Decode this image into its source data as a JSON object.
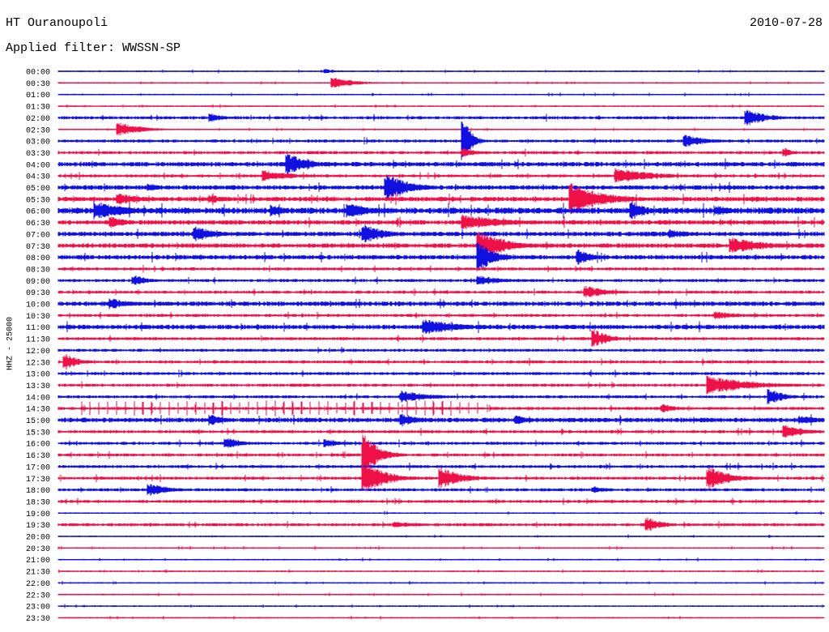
{
  "header": {
    "station": "HT Ouranoupoli",
    "date": "2010-07-28",
    "filter_label": "Applied filter: WWSSN-SP"
  },
  "chart_data": {
    "type": "helicorder",
    "title": "HT Ouranoupoli",
    "date": "2010-07-28",
    "filter": "WWSSN-SP",
    "ylabel": "HHZ - 25000",
    "rows": [
      "00:00",
      "00:30",
      "01:00",
      "01:30",
      "02:00",
      "02:30",
      "03:00",
      "03:30",
      "04:00",
      "04:30",
      "05:00",
      "05:30",
      "06:00",
      "06:30",
      "07:00",
      "07:30",
      "08:00",
      "08:30",
      "09:00",
      "09:30",
      "10:00",
      "10:30",
      "11:00",
      "11:30",
      "12:00",
      "12:30",
      "13:00",
      "13:30",
      "14:00",
      "14:30",
      "15:00",
      "15:30",
      "16:00",
      "16:30",
      "17:00",
      "17:30",
      "18:00",
      "18:30",
      "19:00",
      "19:30",
      "20:00",
      "20:30",
      "21:00",
      "21:30",
      "22:00",
      "22:30",
      "23:00",
      "23:30"
    ],
    "colors": [
      "#1010e0",
      "#f01048"
    ],
    "noise_level": [
      1,
      1,
      1,
      1,
      2,
      1,
      2,
      2,
      3,
      2,
      3,
      3,
      4,
      3,
      3,
      3,
      3,
      2,
      2,
      2,
      3,
      2,
      3,
      2,
      2,
      2,
      2,
      2,
      2,
      2,
      3,
      2,
      2,
      2,
      2,
      2,
      2,
      2,
      1,
      2,
      1,
      1,
      1,
      1,
      1,
      1,
      1,
      1
    ],
    "events": [
      {
        "row": 0,
        "t": 0.35,
        "amp": 3,
        "dur": 0.02
      },
      {
        "row": 1,
        "t": 0.36,
        "amp": 7,
        "dur": 0.03
      },
      {
        "row": 4,
        "t": 0.2,
        "amp": 6,
        "dur": 0.02
      },
      {
        "row": 4,
        "t": 0.9,
        "amp": 10,
        "dur": 0.03
      },
      {
        "row": 5,
        "t": 0.08,
        "amp": 9,
        "dur": 0.03
      },
      {
        "row": 6,
        "t": 0.53,
        "amp": 30,
        "dur": 0.01
      },
      {
        "row": 6,
        "t": 0.82,
        "amp": 8,
        "dur": 0.03
      },
      {
        "row": 7,
        "t": 0.53,
        "amp": 6,
        "dur": 0.02
      },
      {
        "row": 7,
        "t": 0.95,
        "amp": 6,
        "dur": 0.01
      },
      {
        "row": 8,
        "t": 0.3,
        "amp": 14,
        "dur": 0.03
      },
      {
        "row": 9,
        "t": 0.27,
        "amp": 7,
        "dur": 0.04
      },
      {
        "row": 9,
        "t": 0.73,
        "amp": 10,
        "dur": 0.05
      },
      {
        "row": 10,
        "t": 0.12,
        "amp": 5,
        "dur": 0.02
      },
      {
        "row": 10,
        "t": 0.43,
        "amp": 18,
        "dur": 0.03
      },
      {
        "row": 11,
        "t": 0.08,
        "amp": 8,
        "dur": 0.03
      },
      {
        "row": 11,
        "t": 0.2,
        "amp": 6,
        "dur": 0.02
      },
      {
        "row": 11,
        "t": 0.67,
        "amp": 22,
        "dur": 0.04
      },
      {
        "row": 12,
        "t": 0.05,
        "amp": 12,
        "dur": 0.05
      },
      {
        "row": 12,
        "t": 0.28,
        "amp": 8,
        "dur": 0.02
      },
      {
        "row": 12,
        "t": 0.38,
        "amp": 10,
        "dur": 0.03
      },
      {
        "row": 12,
        "t": 0.75,
        "amp": 12,
        "dur": 0.02
      },
      {
        "row": 12,
        "t": 0.86,
        "amp": 7,
        "dur": 0.03
      },
      {
        "row": 13,
        "t": 0.07,
        "amp": 8,
        "dur": 0.02
      },
      {
        "row": 13,
        "t": 0.53,
        "amp": 10,
        "dur": 0.06
      },
      {
        "row": 14,
        "t": 0.18,
        "amp": 10,
        "dur": 0.03
      },
      {
        "row": 14,
        "t": 0.4,
        "amp": 12,
        "dur": 0.03
      },
      {
        "row": 14,
        "t": 0.8,
        "amp": 6,
        "dur": 0.03
      },
      {
        "row": 15,
        "t": 0.55,
        "amp": 18,
        "dur": 0.04
      },
      {
        "row": 15,
        "t": 0.88,
        "amp": 10,
        "dur": 0.05
      },
      {
        "row": 16,
        "t": 0.55,
        "amp": 20,
        "dur": 0.02
      },
      {
        "row": 16,
        "t": 0.68,
        "amp": 10,
        "dur": 0.02
      },
      {
        "row": 18,
        "t": 0.1,
        "amp": 7,
        "dur": 0.02
      },
      {
        "row": 18,
        "t": 0.55,
        "amp": 6,
        "dur": 0.04
      },
      {
        "row": 19,
        "t": 0.69,
        "amp": 8,
        "dur": 0.03
      },
      {
        "row": 20,
        "t": 0.07,
        "amp": 7,
        "dur": 0.03
      },
      {
        "row": 21,
        "t": 0.86,
        "amp": 5,
        "dur": 0.04
      },
      {
        "row": 22,
        "t": 0.48,
        "amp": 10,
        "dur": 0.05
      },
      {
        "row": 23,
        "t": 0.7,
        "amp": 12,
        "dur": 0.02
      },
      {
        "row": 25,
        "t": 0.01,
        "amp": 10,
        "dur": 0.02
      },
      {
        "row": 27,
        "t": 0.85,
        "amp": 12,
        "dur": 0.06
      },
      {
        "row": 28,
        "t": 0.45,
        "amp": 8,
        "dur": 0.04
      },
      {
        "row": 28,
        "t": 0.93,
        "amp": 10,
        "dur": 0.02
      },
      {
        "row": 29,
        "t": 0.79,
        "amp": 6,
        "dur": 0.02
      },
      {
        "row": 30,
        "t": 0.2,
        "amp": 7,
        "dur": 0.02
      },
      {
        "row": 30,
        "t": 0.45,
        "amp": 8,
        "dur": 0.03
      },
      {
        "row": 30,
        "t": 0.6,
        "amp": 6,
        "dur": 0.02
      },
      {
        "row": 30,
        "t": 0.97,
        "amp": 6,
        "dur": 0.03
      },
      {
        "row": 31,
        "t": 0.95,
        "amp": 8,
        "dur": 0.03
      },
      {
        "row": 32,
        "t": 0.22,
        "amp": 8,
        "dur": 0.02
      },
      {
        "row": 32,
        "t": 0.35,
        "amp": 6,
        "dur": 0.02
      },
      {
        "row": 33,
        "t": 0.4,
        "amp": 26,
        "dur": 0.02
      },
      {
        "row": 35,
        "t": 0.4,
        "amp": 20,
        "dur": 0.03
      },
      {
        "row": 35,
        "t": 0.5,
        "amp": 14,
        "dur": 0.03
      },
      {
        "row": 35,
        "t": 0.85,
        "amp": 14,
        "dur": 0.03
      },
      {
        "row": 36,
        "t": 0.12,
        "amp": 8,
        "dur": 0.03
      },
      {
        "row": 36,
        "t": 0.7,
        "amp": 5,
        "dur": 0.02
      },
      {
        "row": 39,
        "t": 0.44,
        "amp": 4,
        "dur": 0.04
      },
      {
        "row": 39,
        "t": 0.77,
        "amp": 10,
        "dur": 0.02
      }
    ],
    "spike_train": {
      "row": 29,
      "from": 0.03,
      "to": 0.55,
      "spacing": 0.0115,
      "amp": 10
    }
  }
}
